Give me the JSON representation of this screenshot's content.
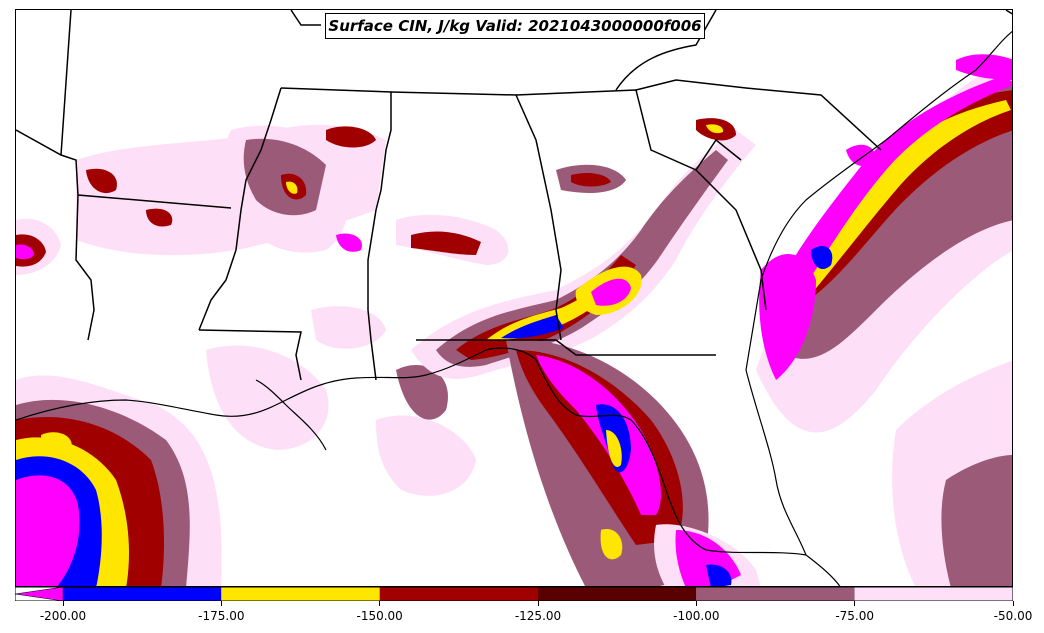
{
  "title": "Surface CIN, J/kg Valid: 2021043000000f006",
  "colorbar": {
    "ticks": [
      "-200.00",
      "-175.00",
      "-150.00",
      "-125.00",
      "-100.00",
      "-75.00",
      "-50.00"
    ],
    "segments": [
      {
        "from": -200,
        "to": -175,
        "color": "#0000ff"
      },
      {
        "from": -175,
        "to": -150,
        "color": "#ffe600"
      },
      {
        "from": -150,
        "to": -125,
        "color": "#a00000"
      },
      {
        "from": -125,
        "to": -100,
        "color": "#5a0000"
      },
      {
        "from": -100,
        "to": -75,
        "color": "#9b5a78"
      },
      {
        "from": -75,
        "to": -50,
        "color": "#fde0f7"
      }
    ],
    "extend_color": "#ff00ff"
  }
}
